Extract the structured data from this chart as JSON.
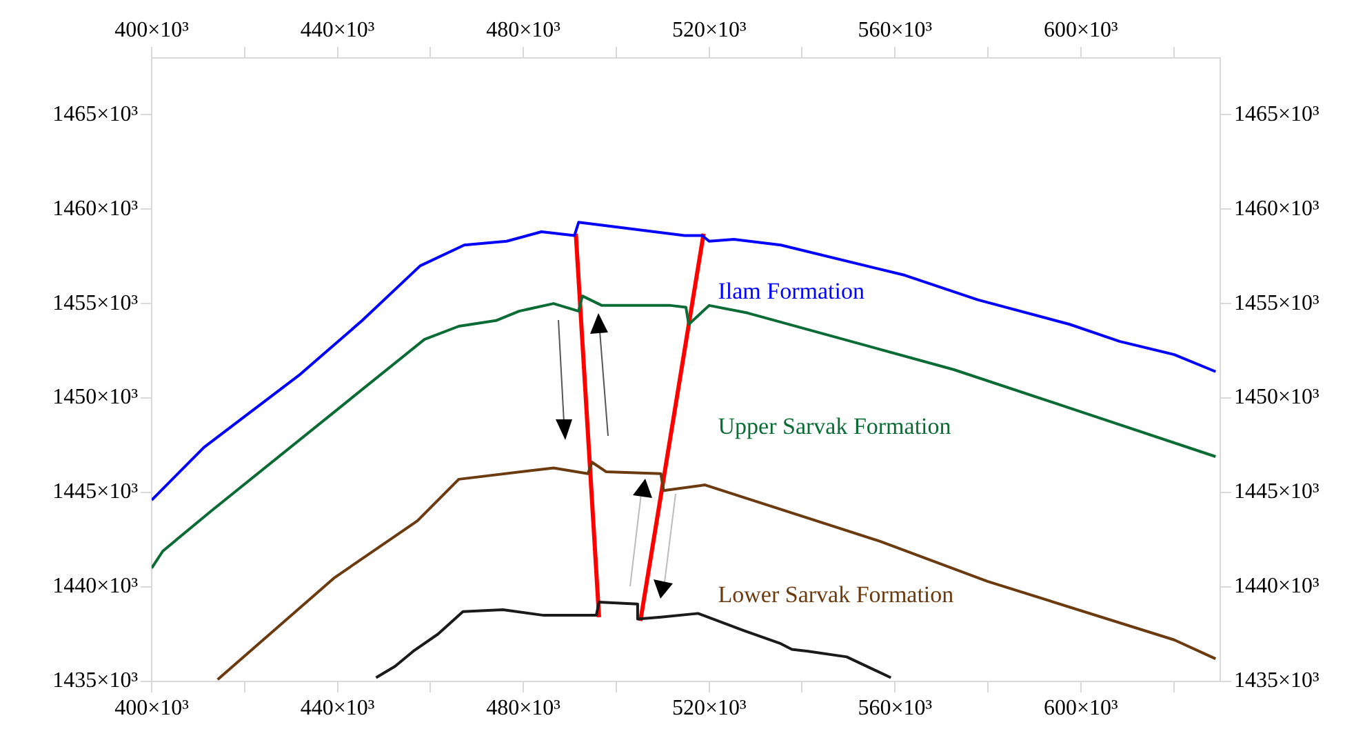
{
  "chart_data": {
    "type": "line",
    "marker": "none",
    "legend": false,
    "xlim": [
      400000,
      630000
    ],
    "xticks": [
      {
        "value": 400000,
        "label": "400×10³"
      },
      {
        "value": 420000,
        "label": null
      },
      {
        "value": 440000,
        "label": "440×10³"
      },
      {
        "value": 460000,
        "label": null
      },
      {
        "value": 480000,
        "label": "480×10³"
      },
      {
        "value": 500000,
        "label": null
      },
      {
        "value": 520000,
        "label": "520×10³"
      },
      {
        "value": 540000,
        "label": null
      },
      {
        "value": 560000,
        "label": "560×10³"
      },
      {
        "value": 580000,
        "label": null
      },
      {
        "value": 600000,
        "label": "600×10³"
      },
      {
        "value": 620000,
        "label": null
      }
    ],
    "x2lim": [
      400000,
      630000
    ],
    "x2ticks": [
      {
        "value": 400000,
        "label": "400×10³"
      },
      {
        "value": 420000,
        "label": null
      },
      {
        "value": 440000,
        "label": "440×10³"
      },
      {
        "value": 460000,
        "label": null
      },
      {
        "value": 480000,
        "label": "480×10³"
      },
      {
        "value": 500000,
        "label": null
      },
      {
        "value": 520000,
        "label": "520×10³"
      },
      {
        "value": 540000,
        "label": null
      },
      {
        "value": 560000,
        "label": "560×10³"
      },
      {
        "value": 580000,
        "label": null
      },
      {
        "value": 600000,
        "label": "600×10³"
      },
      {
        "value": 620000,
        "label": null
      }
    ],
    "ylim": [
      1435000,
      1468000
    ],
    "yticks": [
      {
        "value": 1435000,
        "label": "1435×10³"
      },
      {
        "value": 1440000,
        "label": "1440×10³"
      },
      {
        "value": 1445000,
        "label": "1445×10³"
      },
      {
        "value": 1450000,
        "label": "1450×10³"
      },
      {
        "value": 1455000,
        "label": "1455×10³"
      },
      {
        "value": 1460000,
        "label": "1460×10³"
      },
      {
        "value": 1465000,
        "label": "1465×10³"
      }
    ],
    "y2lim": [
      1435000,
      1468000
    ],
    "y2ticks": [
      {
        "value": 1435000,
        "label": "1435×10³"
      },
      {
        "value": 1440000,
        "label": "1440×10³"
      },
      {
        "value": 1445000,
        "label": "1445×10³"
      },
      {
        "value": 1450000,
        "label": "1450×10³"
      },
      {
        "value": 1455000,
        "label": "1455×10³"
      },
      {
        "value": 1460000,
        "label": "1460×10³"
      },
      {
        "value": 1465000,
        "label": "1465×10³"
      }
    ],
    "series": [
      {
        "name": "Ilam Formation",
        "color": "#0000ff",
        "x": [
          400000,
          411300,
          431700,
          445300,
          457800,
          467300,
          476400,
          483900,
          491000,
          491900,
          514700,
          518500,
          520000,
          525300,
          535400,
          562100,
          577800,
          597600,
          608300,
          620100,
          629000
        ],
        "values": [
          1444600,
          1447400,
          1451200,
          1454100,
          1457000,
          1458100,
          1458300,
          1458800,
          1458600,
          1459300,
          1458600,
          1458600,
          1458300,
          1458400,
          1458100,
          1456500,
          1455200,
          1453900,
          1453000,
          1452300,
          1451400
        ]
      },
      {
        "name": "Upper Sarvak Formation",
        "color": "#0b6b35",
        "x": [
          400000,
          402400,
          412700,
          458700,
          466100,
          474100,
          479100,
          486500,
          491900,
          492700,
          496900,
          511700,
          515000,
          515600,
          520000,
          528300,
          572700,
          598500,
          629000
        ],
        "values": [
          1441000,
          1441900,
          1444000,
          1453100,
          1453800,
          1454100,
          1454600,
          1455000,
          1454600,
          1455400,
          1454900,
          1454900,
          1454800,
          1453900,
          1454900,
          1454500,
          1451500,
          1449400,
          1446900
        ]
      },
      {
        "name": "Lower Sarvak Formation",
        "color": "#6b3a0f",
        "x": [
          414200,
          439400,
          457200,
          466100,
          486500,
          493900,
          494800,
          497800,
          509600,
          510200,
          519100,
          557000,
          579900,
          620100,
          629000
        ],
        "values": [
          1435100,
          1440500,
          1443500,
          1445700,
          1446300,
          1446000,
          1446600,
          1446100,
          1446000,
          1445100,
          1445400,
          1442400,
          1440300,
          1437200,
          1436200
        ]
      },
      {
        "color": "#1a1a1a",
        "x": [
          448300,
          452400,
          456300,
          461600,
          467000,
          475600,
          484400,
          495700,
          496300,
          504600,
          504600,
          509600,
          517600,
          527400,
          535400,
          537800,
          541300,
          549600,
          559100
        ],
        "values": [
          1435200,
          1435800,
          1436600,
          1437500,
          1438700,
          1438800,
          1438500,
          1438500,
          1439200,
          1439100,
          1438300,
          1438400,
          1438600,
          1437700,
          1437000,
          1436700,
          1436600,
          1436300,
          1435200
        ]
      },
      {
        "color": "#ff0000",
        "x": [
          491300,
          496300
        ],
        "values": [
          1458700,
          1438400
        ]
      },
      {
        "color": "#ff0000",
        "x": [
          518800,
          505200
        ],
        "values": [
          1458700,
          1438200
        ]
      }
    ]
  }
}
